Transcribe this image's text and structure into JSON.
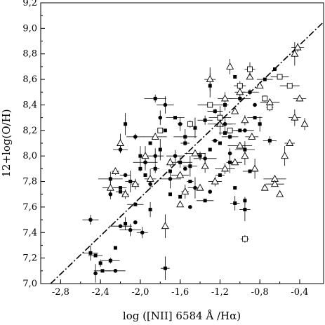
{
  "chart_data": {
    "type": "scatter",
    "title": "",
    "xlabel": "log ([NII] 6584 Å /Hα)",
    "ylabel": "12+log(O/H)",
    "xlim": [
      -3.0,
      -0.16
    ],
    "ylim": [
      7.0,
      9.2
    ],
    "x_ticks": [
      -2.8,
      -2.4,
      -2.0,
      -1.6,
      -1.2,
      -0.8,
      -0.4
    ],
    "x_tick_labels": [
      "-2,8",
      "-2,4",
      "-2,0",
      "-1,6",
      "-1,2",
      "-0,8",
      "-0,4"
    ],
    "y_ticks": [
      7.0,
      7.2,
      7.4,
      7.6,
      7.8,
      8.0,
      8.2,
      8.4,
      8.6,
      8.8,
      9.0,
      9.2
    ],
    "y_tick_labels": [
      "7,0",
      "7,2",
      "7,4",
      "7,6",
      "7,8",
      "8,0",
      "8,2",
      "8,4",
      "8,6",
      "8,8",
      "9,0",
      "9,2"
    ],
    "grid": false,
    "legend": "none",
    "colors": {
      "ink": "#000000",
      "background": "#ffffff"
    },
    "fit_line": {
      "style": "dash-dot",
      "x": [
        -2.9,
        -0.16
      ],
      "y": [
        7.0,
        9.05
      ]
    },
    "series": [
      {
        "marker": "filled-square",
        "points": [
          [
            -2.5,
            7.24
          ],
          [
            -2.45,
            7.22
          ],
          [
            -2.38,
            7.1
          ],
          [
            -2.3,
            7.18
          ],
          [
            -2.4,
            7.16
          ],
          [
            -2.25,
            7.28
          ],
          [
            -2.15,
            7.47
          ],
          [
            -1.9,
            7.58
          ],
          [
            -1.75,
            7.12
          ],
          [
            -2.05,
            7.62
          ],
          [
            -2.2,
            7.75
          ],
          [
            -2.1,
            7.8
          ],
          [
            -1.95,
            7.85
          ],
          [
            -1.85,
            7.9
          ],
          [
            -1.7,
            7.88
          ],
          [
            -1.6,
            7.95
          ],
          [
            -1.5,
            7.92
          ],
          [
            -1.4,
            8.0
          ],
          [
            -1.3,
            8.05
          ],
          [
            -1.2,
            8.1
          ],
          [
            -1.1,
            8.15
          ],
          [
            -1.05,
            7.75
          ],
          [
            -0.95,
            7.58
          ],
          [
            -1.35,
            7.65
          ],
          [
            -1.8,
            8.05
          ],
          [
            -2.0,
            8.0
          ],
          [
            -1.75,
            8.2
          ],
          [
            -1.65,
            8.3
          ],
          [
            -1.55,
            8.1
          ],
          [
            -1.45,
            8.22
          ],
          [
            -1.25,
            8.35
          ],
          [
            -1.15,
            8.4
          ],
          [
            -1.0,
            8.45
          ],
          [
            -0.9,
            8.5
          ],
          [
            -0.85,
            8.3
          ],
          [
            -1.0,
            8.2
          ],
          [
            -0.95,
            8.05
          ],
          [
            -1.1,
            7.95
          ],
          [
            -1.2,
            7.85
          ],
          [
            -0.9,
            7.88
          ],
          [
            -0.75,
            8.6
          ],
          [
            -0.65,
            8.68
          ],
          [
            -1.3,
            8.55
          ],
          [
            -1.05,
            8.62
          ],
          [
            -1.9,
            8.1
          ],
          [
            -2.0,
            7.9
          ],
          [
            -1.7,
            7.7
          ],
          [
            -1.6,
            7.68
          ],
          [
            -1.5,
            7.8
          ],
          [
            -0.95,
            7.65
          ],
          [
            -1.05,
            7.63
          ],
          [
            -2.3,
            7.82
          ],
          [
            -2.2,
            7.72
          ],
          [
            -2.15,
            8.25
          ],
          [
            -1.85,
            8.45
          ],
          [
            -1.55,
            8.15
          ],
          [
            -1.35,
            8.28
          ],
          [
            -1.15,
            8.18
          ],
          [
            -0.8,
            8.25
          ],
          [
            -0.7,
            8.12
          ]
        ]
      },
      {
        "marker": "filled-circle",
        "points": [
          [
            -2.45,
            7.08
          ],
          [
            -2.5,
            7.5
          ],
          [
            -2.25,
            7.1
          ],
          [
            -2.2,
            7.45
          ],
          [
            -2.1,
            7.42
          ],
          [
            -2.05,
            7.48
          ],
          [
            -1.98,
            7.4
          ],
          [
            -2.3,
            7.7
          ],
          [
            -2.15,
            7.85
          ],
          [
            -1.95,
            7.95
          ],
          [
            -1.85,
            8.0
          ],
          [
            -1.7,
            7.82
          ],
          [
            -1.65,
            8.0
          ],
          [
            -1.55,
            7.9
          ],
          [
            -1.45,
            7.75
          ],
          [
            -1.35,
            7.98
          ],
          [
            -1.25,
            8.12
          ],
          [
            -1.15,
            8.25
          ],
          [
            -2.2,
            8.05
          ],
          [
            -1.8,
            8.3
          ],
          [
            -1.75,
            8.4
          ],
          [
            -1.6,
            8.25
          ],
          [
            -2.05,
            8.15
          ],
          [
            -1.9,
            7.78
          ],
          [
            -1.5,
            7.6
          ],
          [
            -1.3,
            7.72
          ],
          [
            -1.1,
            8.02
          ],
          [
            -0.95,
            8.2
          ],
          [
            -0.85,
            8.4
          ],
          [
            -1.0,
            8.55
          ]
        ]
      },
      {
        "marker": "open-triangle",
        "points": [
          [
            -2.15,
            7.7
          ],
          [
            -2.3,
            7.75
          ],
          [
            -2.25,
            7.88
          ],
          [
            -2.05,
            7.78
          ],
          [
            -1.9,
            7.82
          ],
          [
            -1.85,
            8.15
          ],
          [
            -1.7,
            7.95
          ],
          [
            -1.6,
            7.85
          ],
          [
            -1.55,
            7.72
          ],
          [
            -1.45,
            8.02
          ],
          [
            -1.35,
            7.92
          ],
          [
            -1.25,
            7.8
          ],
          [
            -1.15,
            7.9
          ],
          [
            -1.05,
            7.95
          ],
          [
            -0.95,
            8.0
          ],
          [
            -0.85,
            7.9
          ],
          [
            -0.75,
            7.75
          ],
          [
            -0.65,
            7.82
          ],
          [
            -0.55,
            8.0
          ],
          [
            -0.45,
            8.3
          ],
          [
            -0.4,
            8.45
          ],
          [
            -0.45,
            8.8
          ],
          [
            -0.5,
            8.1
          ],
          [
            -0.35,
            8.25
          ],
          [
            -0.6,
            7.7
          ],
          [
            -0.65,
            7.78
          ],
          [
            -1.3,
            8.6
          ],
          [
            -1.1,
            8.7
          ],
          [
            -1.0,
            8.5
          ],
          [
            -0.9,
            8.62
          ],
          [
            -0.8,
            8.55
          ],
          [
            -0.7,
            8.42
          ],
          [
            -1.05,
            8.35
          ],
          [
            -1.2,
            8.25
          ],
          [
            -0.95,
            8.28
          ],
          [
            -0.88,
            8.15
          ],
          [
            -1.0,
            8.08
          ],
          [
            -1.75,
            7.45
          ],
          [
            -1.6,
            7.62
          ],
          [
            -1.4,
            7.75
          ],
          [
            -2.2,
            8.1
          ],
          [
            -1.95,
            8.0
          ],
          [
            -1.15,
            8.45
          ],
          [
            -0.42,
            8.85
          ]
        ]
      },
      {
        "marker": "open-square",
        "points": [
          [
            -0.95,
            7.35
          ],
          [
            -0.75,
            8.45
          ],
          [
            -0.7,
            8.38
          ],
          [
            -1.0,
            8.55
          ],
          [
            -1.2,
            8.3
          ],
          [
            -1.5,
            8.25
          ],
          [
            -0.9,
            8.68
          ],
          [
            -0.6,
            8.62
          ],
          [
            -0.5,
            8.55
          ],
          [
            -1.1,
            8.2
          ],
          [
            -1.8,
            8.2
          ],
          [
            -1.3,
            8.4
          ]
        ]
      }
    ]
  }
}
